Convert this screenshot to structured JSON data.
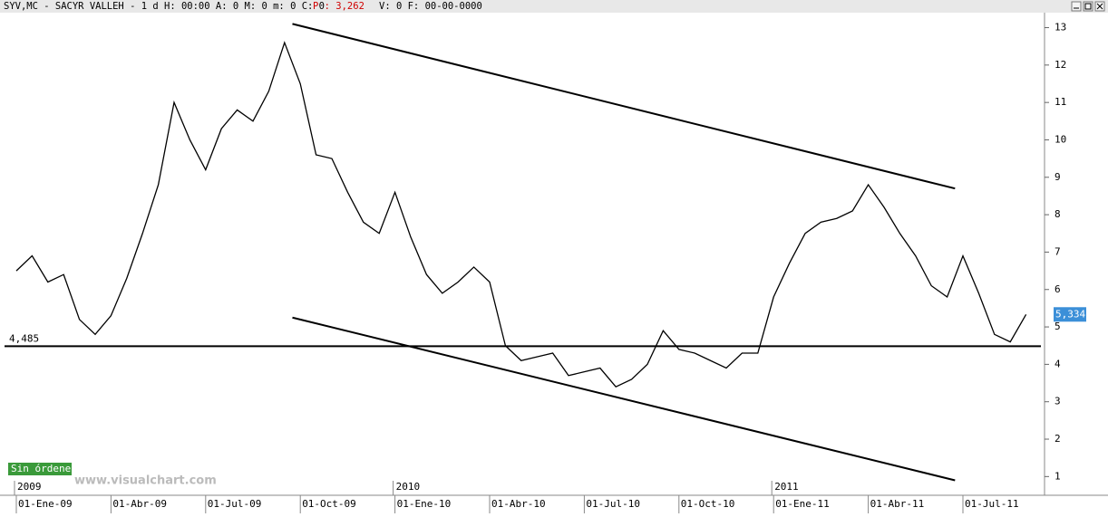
{
  "header": {
    "left": "SYV,MC - SACYR VALLEH -  1 d H: 00:00 A: 0 M: 0 m: 0 C: 0",
    "price": "P : 3,262",
    "right": "V: 0 F: 00-00-0000"
  },
  "badge": "Sin órdenes",
  "watermark": "www.visualchart.com",
  "chart_data": {
    "type": "line",
    "color": "#000000",
    "categories": [
      "01-Ene-09",
      null,
      null,
      null,
      null,
      null,
      "01-Abr-09",
      null,
      null,
      null,
      null,
      null,
      "01-Jul-09",
      null,
      null,
      null,
      null,
      null,
      "01-Oct-09",
      null,
      null,
      null,
      null,
      null,
      "01-Ene-10",
      null,
      null,
      null,
      null,
      null,
      "01-Abr-10",
      null,
      null,
      null,
      null,
      null,
      "01-Jul-10",
      null,
      null,
      null,
      null,
      null,
      "01-Oct-10",
      null,
      null,
      null,
      null,
      null,
      "01-Ene-11",
      null,
      null,
      null,
      null,
      null,
      "01-Abr-11",
      null,
      null,
      null,
      null,
      null,
      "01-Jul-11",
      null,
      null,
      null,
      null
    ],
    "years": [
      "2009",
      null,
      null,
      null,
      null,
      null,
      null,
      null,
      null,
      null,
      null,
      null,
      null,
      null,
      null,
      null,
      null,
      null,
      null,
      null,
      null,
      null,
      null,
      null,
      "2010",
      null,
      null,
      null,
      null,
      null,
      null,
      null,
      null,
      null,
      null,
      null,
      null,
      null,
      null,
      null,
      null,
      null,
      null,
      null,
      null,
      null,
      null,
      null,
      "2011",
      null,
      null,
      null,
      null,
      null,
      null,
      null,
      null,
      null,
      null,
      null,
      null,
      null,
      null,
      null,
      null
    ],
    "values": [
      6.5,
      6.9,
      6.2,
      6.4,
      5.2,
      4.8,
      5.3,
      6.3,
      7.5,
      8.8,
      11.0,
      10.0,
      9.2,
      10.3,
      10.8,
      10.5,
      11.3,
      12.6,
      11.5,
      9.6,
      9.5,
      8.6,
      7.8,
      7.5,
      8.6,
      7.4,
      6.4,
      5.9,
      6.2,
      6.6,
      6.2,
      4.5,
      4.1,
      4.2,
      4.3,
      3.7,
      3.8,
      3.9,
      3.4,
      3.6,
      4.0,
      4.9,
      4.4,
      4.3,
      4.1,
      3.9,
      4.3,
      4.3,
      5.8,
      6.7,
      7.5,
      7.8,
      7.9,
      8.1,
      8.8,
      8.2,
      7.5,
      6.9,
      6.1,
      5.8,
      6.9,
      5.9,
      4.8,
      4.6,
      5.334
    ],
    "value_labels": [
      null,
      null,
      null,
      null,
      null,
      null,
      null,
      null,
      null,
      null,
      null,
      null,
      null,
      null,
      null,
      null,
      null,
      null,
      null,
      null,
      null,
      null,
      null,
      null,
      null,
      null,
      null,
      null,
      null,
      null,
      null,
      null,
      null,
      null,
      null,
      null,
      null,
      null,
      null,
      null,
      null,
      null,
      null,
      null,
      null,
      null,
      null,
      null,
      null,
      null,
      null,
      null,
      null,
      null,
      null,
      null,
      null,
      null,
      null,
      null,
      null,
      null,
      null,
      null,
      "5,334"
    ],
    "ylim": [
      0.5,
      13.4
    ],
    "yticks": [
      1,
      2,
      3,
      4,
      5,
      6,
      7,
      8,
      9,
      10,
      11,
      12,
      13
    ],
    "hline": {
      "value": 4.485,
      "label": "4,485"
    },
    "trendlines": [
      {
        "x": [
          17.5,
          59.5
        ],
        "values": [
          13.1,
          8.7
        ]
      },
      {
        "x": [
          17.5,
          59.5
        ],
        "values": [
          5.25,
          0.9
        ]
      }
    ]
  }
}
